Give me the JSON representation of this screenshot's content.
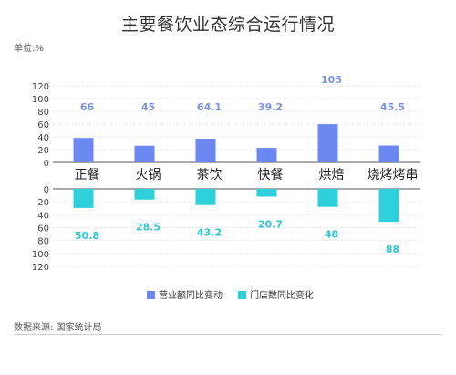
{
  "title": "主要餐饮业态综合运行情况",
  "unit_label": "单位:%",
  "source": "数据来源: 国家统计局",
  "colors": {
    "revenue": "#6b87f0",
    "stores": "#2dcfdb",
    "value_revenue": "#7a92ef",
    "value_stores": "#2fc6d8"
  },
  "chart_data": {
    "type": "bar",
    "categories": [
      "正餐",
      "火锅",
      "茶饮",
      "快餐",
      "烘焙",
      "烧烤烤串"
    ],
    "series": [
      {
        "name": "营业额同比变动",
        "values": [
          66,
          45,
          64.1,
          39.2,
          105,
          45.5
        ]
      },
      {
        "name": "门店数同比变化",
        "values": [
          50.8,
          28.5,
          43.2,
          20.7,
          48,
          88
        ]
      }
    ],
    "value_labels_top": [
      "66",
      "45",
      "64.1",
      "39.2",
      "105",
      "45.5"
    ],
    "value_labels_bottom": [
      "50.8",
      "28.5",
      "43.2",
      "20.7",
      "48",
      "88"
    ],
    "top_axis": {
      "ticks": [
        "0",
        "20",
        "40",
        "60",
        "80",
        "100",
        "120"
      ],
      "ylim": [
        0,
        120
      ]
    },
    "bottom_axis": {
      "ticks": [
        "0",
        "20",
        "40",
        "60",
        "80",
        "100",
        "120"
      ],
      "ylim": [
        0,
        120
      ],
      "inverted": true
    },
    "legend_position": "bottom-center",
    "grid": true
  }
}
